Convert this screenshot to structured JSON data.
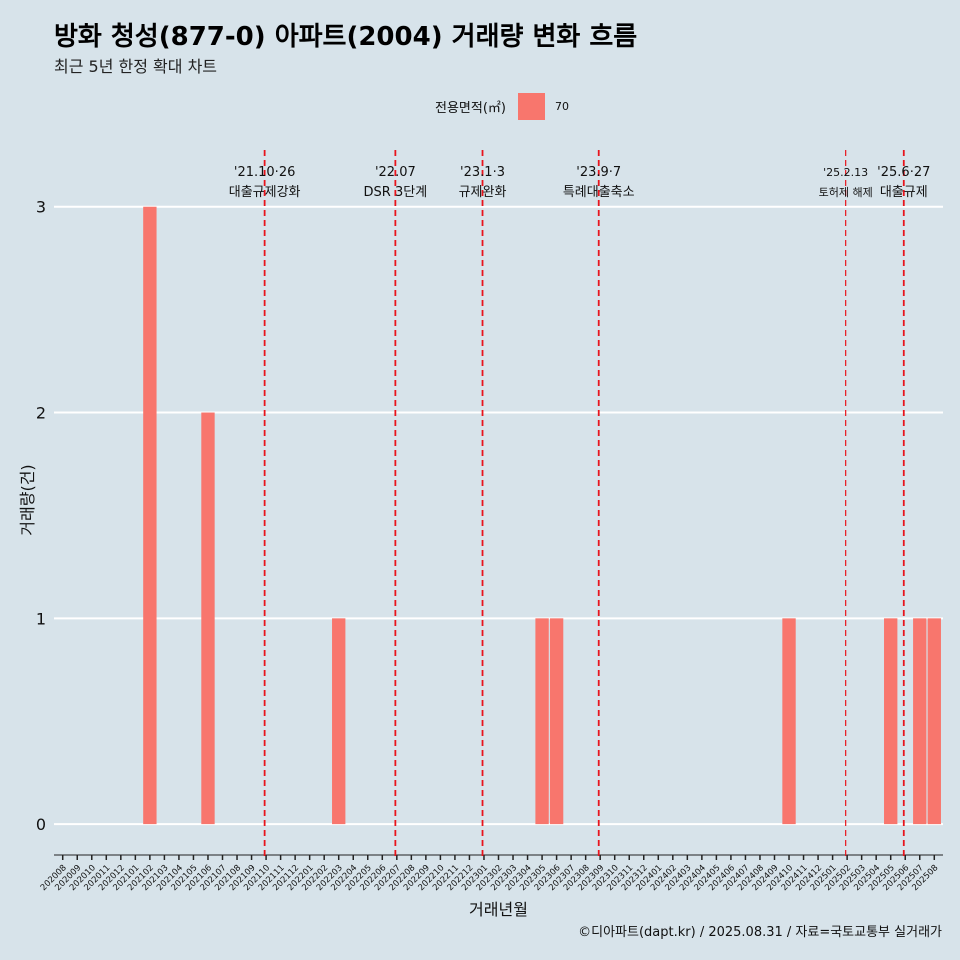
{
  "header": {
    "title": "방화 청성(877-0) 아파트(2004) 거래량 변화 흐름",
    "subtitle": "최근 5년 한정 확대 차트"
  },
  "footer": {
    "caption": "©디아파트(dapt.kr) / 2025.08.31 / 자료=국토교통부 실거래가"
  },
  "legend": {
    "title": "전용면적(㎡)",
    "items": [
      {
        "label": "70",
        "color": "#f8766d"
      }
    ]
  },
  "chart_data": {
    "type": "bar",
    "title": "방화 청성(877-0) 아파트(2004) 거래량 변화 흐름",
    "xlabel": "거래년월",
    "ylabel": "거래량(건)",
    "ylim": [
      -0.15,
      3.3
    ],
    "yticks": [
      0,
      1,
      2,
      3
    ],
    "grid": true,
    "legend_position": "top",
    "categories": [
      "202008",
      "202009",
      "202010",
      "202011",
      "202012",
      "202101",
      "202102",
      "202103",
      "202104",
      "202105",
      "202106",
      "202107",
      "202108",
      "202109",
      "202110",
      "202111",
      "202112",
      "202201",
      "202202",
      "202203",
      "202204",
      "202205",
      "202206",
      "202207",
      "202208",
      "202209",
      "202210",
      "202211",
      "202212",
      "202301",
      "202302",
      "202303",
      "202304",
      "202305",
      "202306",
      "202307",
      "202308",
      "202309",
      "202310",
      "202311",
      "202312",
      "202401",
      "202402",
      "202403",
      "202404",
      "202405",
      "202406",
      "202407",
      "202408",
      "202409",
      "202410",
      "202411",
      "202412",
      "202501",
      "202502",
      "202503",
      "202504",
      "202505",
      "202506",
      "202507",
      "202508"
    ],
    "series": [
      {
        "name": "70",
        "color": "#f8766d",
        "values": [
          0,
          0,
          0,
          0,
          0,
          0,
          3,
          0,
          0,
          0,
          2,
          0,
          0,
          0,
          0,
          0,
          0,
          0,
          0,
          1,
          0,
          0,
          0,
          0,
          0,
          0,
          0,
          0,
          0,
          0,
          0,
          0,
          0,
          1,
          1,
          0,
          0,
          0,
          0,
          0,
          0,
          0,
          0,
          0,
          0,
          0,
          0,
          0,
          0,
          0,
          1,
          0,
          0,
          0,
          0,
          0,
          0,
          1,
          0,
          1,
          1
        ]
      }
    ],
    "annotations": [
      {
        "x": 13.9,
        "line1": "'21.10·26",
        "line2": "대출규제강화",
        "small": false
      },
      {
        "x": 22.9,
        "line1": "'22.07",
        "line2": "DSR 3단계",
        "small": false
      },
      {
        "x": 28.9,
        "line1": "'23.1·3",
        "line2": "규제완화",
        "small": false
      },
      {
        "x": 36.9,
        "line1": "'23.9·7",
        "line2": "특례대출축소",
        "small": false
      },
      {
        "x": 53.9,
        "line1": "'25.2.13",
        "line2": "토허제 해제",
        "small": true
      },
      {
        "x": 57.9,
        "line1": "'25.6·27",
        "line2": "대출규제",
        "small": false
      }
    ]
  }
}
